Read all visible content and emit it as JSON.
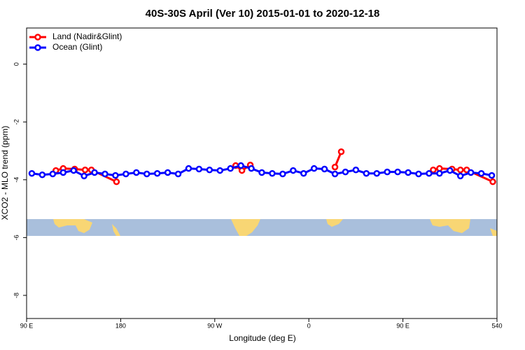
{
  "chart_data": {
    "type": "line",
    "title": "40S-30S April (Ver 10)   2015-01-01 to 2020-12-18",
    "x_label": "Longitude (deg E)",
    "y_label": "XCO2 - MLO trend (ppm)",
    "xlim": [
      90,
      540
    ],
    "ylim": [
      -8.8,
      1.25
    ],
    "xticks": [
      {
        "value": 90,
        "label": "90 E"
      },
      180,
      {
        "value": 270,
        "label": "90 W"
      },
      {
        "value": 360,
        "label": "0"
      },
      {
        "value": 450,
        "label": "90 E"
      },
      540
    ],
    "yticks": [
      0,
      -2,
      -4,
      -6,
      -8
    ],
    "legend": "top-left",
    "series": [
      {
        "name": "Land (Nadir&Glint)",
        "color": "#ff0000",
        "x": [
          118,
          125,
          136,
          146,
          152,
          176,
          null,
          290,
          296,
          304,
          null,
          385,
          391,
          null,
          479,
          485,
          497,
          505,
          511,
          536
        ],
        "values": [
          -3.68,
          -3.61,
          -3.63,
          -3.66,
          -3.66,
          -4.07,
          null,
          -3.51,
          -3.68,
          -3.49,
          null,
          -3.56,
          -3.03,
          null,
          -3.66,
          -3.61,
          -3.63,
          -3.66,
          -3.66,
          -4.07
        ]
      },
      {
        "name": "Ocean (Glint)",
        "color": "#0000ff",
        "x": [
          95,
          105,
          115,
          125,
          135,
          145,
          155,
          165,
          175,
          185,
          195,
          205,
          215,
          225,
          235,
          245,
          255,
          265,
          275,
          285,
          295,
          305,
          315,
          325,
          335,
          345,
          355,
          365,
          375,
          385,
          395,
          405,
          415,
          425,
          435,
          445,
          455,
          465,
          475,
          485,
          495,
          505,
          515,
          525,
          535
        ],
        "values": [
          -3.78,
          -3.83,
          -3.8,
          -3.75,
          -3.68,
          -3.87,
          -3.75,
          -3.8,
          -3.85,
          -3.8,
          -3.75,
          -3.8,
          -3.78,
          -3.75,
          -3.8,
          -3.61,
          -3.63,
          -3.66,
          -3.68,
          -3.61,
          -3.51,
          -3.61,
          -3.75,
          -3.78,
          -3.8,
          -3.68,
          -3.78,
          -3.61,
          -3.63,
          -3.8,
          -3.73,
          -3.66,
          -3.78,
          -3.78,
          -3.73,
          -3.73,
          -3.75,
          -3.8,
          -3.78,
          -3.78,
          -3.68,
          -3.87,
          -3.75,
          -3.78,
          -3.85
        ]
      }
    ]
  }
}
